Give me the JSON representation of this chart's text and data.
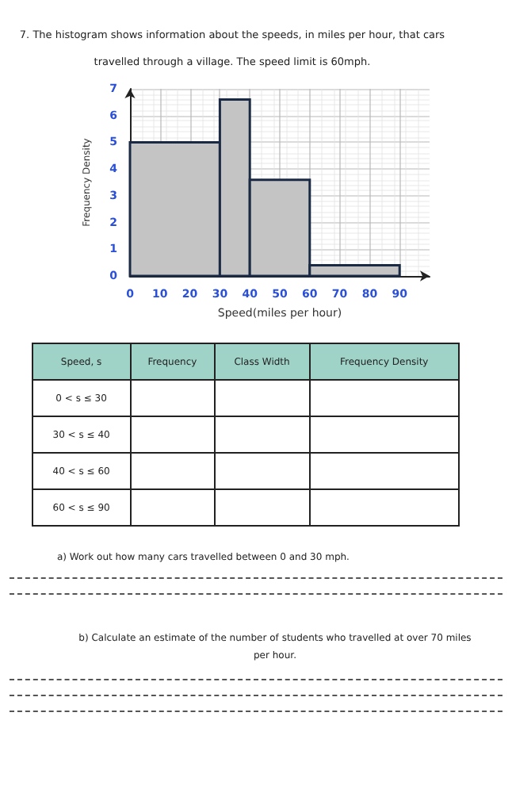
{
  "chart_data": {
    "type": "histogram",
    "title": "7.  The histogram shows information about the speeds, in miles per hour, that cars travelled through a village. The speed limit is 60mph.",
    "xlabel": "Speed(miles per hour)",
    "ylabel": "Frequency Density",
    "bins": [
      0,
      30,
      40,
      60,
      90
    ],
    "values": [
      5,
      6.6,
      3.6,
      0.4
    ],
    "color": "#c4c4c4",
    "xlim": [
      0,
      100
    ],
    "xticks": [
      0,
      10,
      20,
      30,
      40,
      50,
      60,
      70,
      80,
      90
    ],
    "ylim": [
      0,
      7
    ],
    "yticks": [
      0,
      1,
      2,
      3,
      4,
      5,
      6,
      7
    ],
    "grid": true,
    "annotations": [
      "Speed, s",
      "Frequency",
      "Class Width",
      "Frequency Density",
      "0 < s ≤ 30",
      "30 < s ≤ 40",
      "40 < s ≤ 60",
      "60 < s ≤ 90",
      "a)  Work out how many cars travelled between 0 and 30 mph.",
      "b)  Calculate an estimate of the number of students who travelled at over 70 miles per hour."
    ]
  }
}
